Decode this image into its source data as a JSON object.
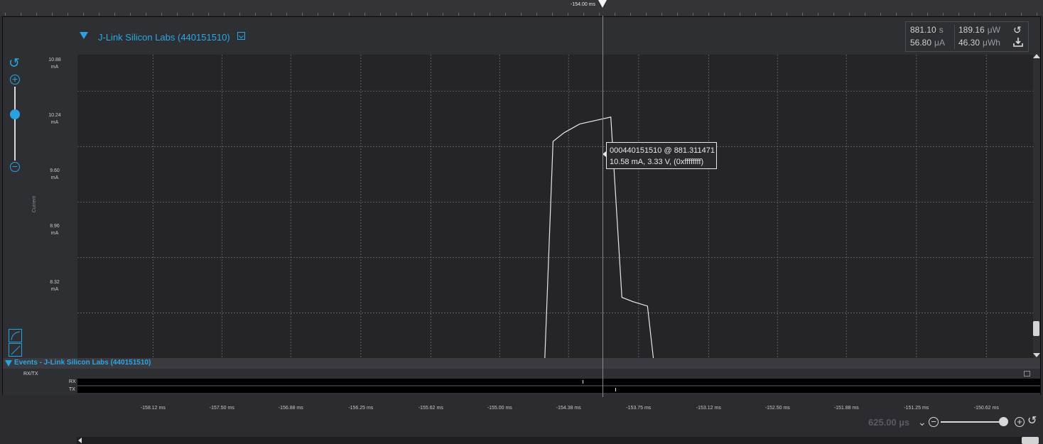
{
  "timeline": {
    "cursor_label": "-154.00 ms"
  },
  "device": {
    "title": "J-Link Silicon Labs (440151510)"
  },
  "stats": {
    "time_value": "881.10",
    "time_unit": "s",
    "power_value": "189.16",
    "power_unit": "μW",
    "current_value": "56.80",
    "current_unit": "μA",
    "energy_value": "46.30",
    "energy_unit": "μWh"
  },
  "chart_data": {
    "type": "line",
    "ylabel": "Current",
    "y_ticks": [
      {
        "value": "10.88",
        "unit": "mA"
      },
      {
        "value": "10.24",
        "unit": "mA"
      },
      {
        "value": "9.60",
        "unit": "mA"
      },
      {
        "value": "8.96",
        "unit": "mA"
      },
      {
        "value": "8.32",
        "unit": "mA"
      }
    ],
    "x_ticks": [
      "-158.12 ms",
      "-157.50 ms",
      "-156.88 ms",
      "-156.25 ms",
      "-155.62 ms",
      "-155.00 ms",
      "-154.38 ms",
      "-153.75 ms",
      "-153.12 ms",
      "-152.50 ms",
      "-151.88 ms",
      "-151.25 ms",
      "-150.62 ms"
    ],
    "ylim": [
      7.8,
      11.3
    ],
    "xlim": [
      -158.8,
      -150.2
    ],
    "grid": true,
    "series": [
      {
        "x": [
          -154.6,
          -154.52,
          -154.42,
          -154.28,
          -154.0,
          -153.9,
          -153.8,
          -153.67,
          -153.6
        ],
        "y": [
          7.6,
          10.3,
          10.4,
          10.5,
          10.58,
          8.5,
          8.45,
          8.4,
          7.6
        ]
      }
    ]
  },
  "tooltip": {
    "line1": "000440151510 @ 881.311471",
    "line2": "10.58 mA, 3.33 V, (0xffffffff)"
  },
  "events": {
    "title": "Events - J-Link Silicon Labs (440151510)",
    "group_label": "RX/TX",
    "rx_label": "RX",
    "tx_label": "TX"
  },
  "zoom": {
    "level": "625.00 µs"
  }
}
